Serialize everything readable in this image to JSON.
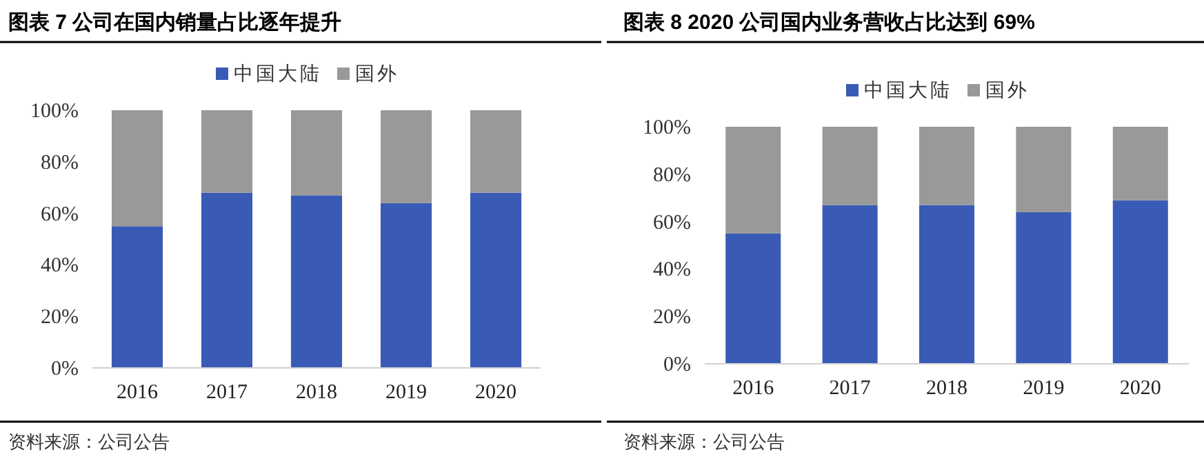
{
  "chart_data": [
    {
      "type": "bar",
      "title": "图表 7 公司在国内销量占比逐年提升",
      "categories": [
        "2016",
        "2017",
        "2018",
        "2019",
        "2020"
      ],
      "stacked": true,
      "legend": "top",
      "series": [
        {
          "name": "中国大陆",
          "color": "#3a5bb5",
          "values": [
            55,
            68,
            67,
            64,
            68
          ]
        },
        {
          "name": "国外",
          "color": "#999999",
          "values": [
            45,
            32,
            33,
            36,
            32
          ]
        }
      ],
      "ylim": [
        0,
        100
      ],
      "yticks": [
        {
          "value": 0,
          "label": "0%"
        },
        {
          "value": 20,
          "label": "20%"
        },
        {
          "value": 40,
          "label": "40%"
        },
        {
          "value": 60,
          "label": "60%"
        },
        {
          "value": 80,
          "label": "80%"
        },
        {
          "value": 100,
          "label": "100%"
        }
      ],
      "annotations": [
        "资料来源：公司公告"
      ]
    },
    {
      "type": "bar",
      "title": "图表 8 2020 公司国内业务营收占比达到 69%",
      "categories": [
        "2016",
        "2017",
        "2018",
        "2019",
        "2020"
      ],
      "stacked": true,
      "legend": "top",
      "series": [
        {
          "name": "中国大陆",
          "color": "#3a5bb5",
          "values": [
            55,
            67,
            67,
            64,
            69
          ]
        },
        {
          "name": "国外",
          "color": "#999999",
          "values": [
            45,
            33,
            33,
            36,
            31
          ]
        }
      ],
      "ylim": [
        0,
        100
      ],
      "yticks": [
        {
          "value": 0,
          "label": "0%"
        },
        {
          "value": 20,
          "label": "20%"
        },
        {
          "value": 40,
          "label": "40%"
        },
        {
          "value": 60,
          "label": "60%"
        },
        {
          "value": 80,
          "label": "80%"
        },
        {
          "value": 100,
          "label": "100%"
        }
      ],
      "annotations": [
        "资料来源：公司公告"
      ]
    }
  ]
}
